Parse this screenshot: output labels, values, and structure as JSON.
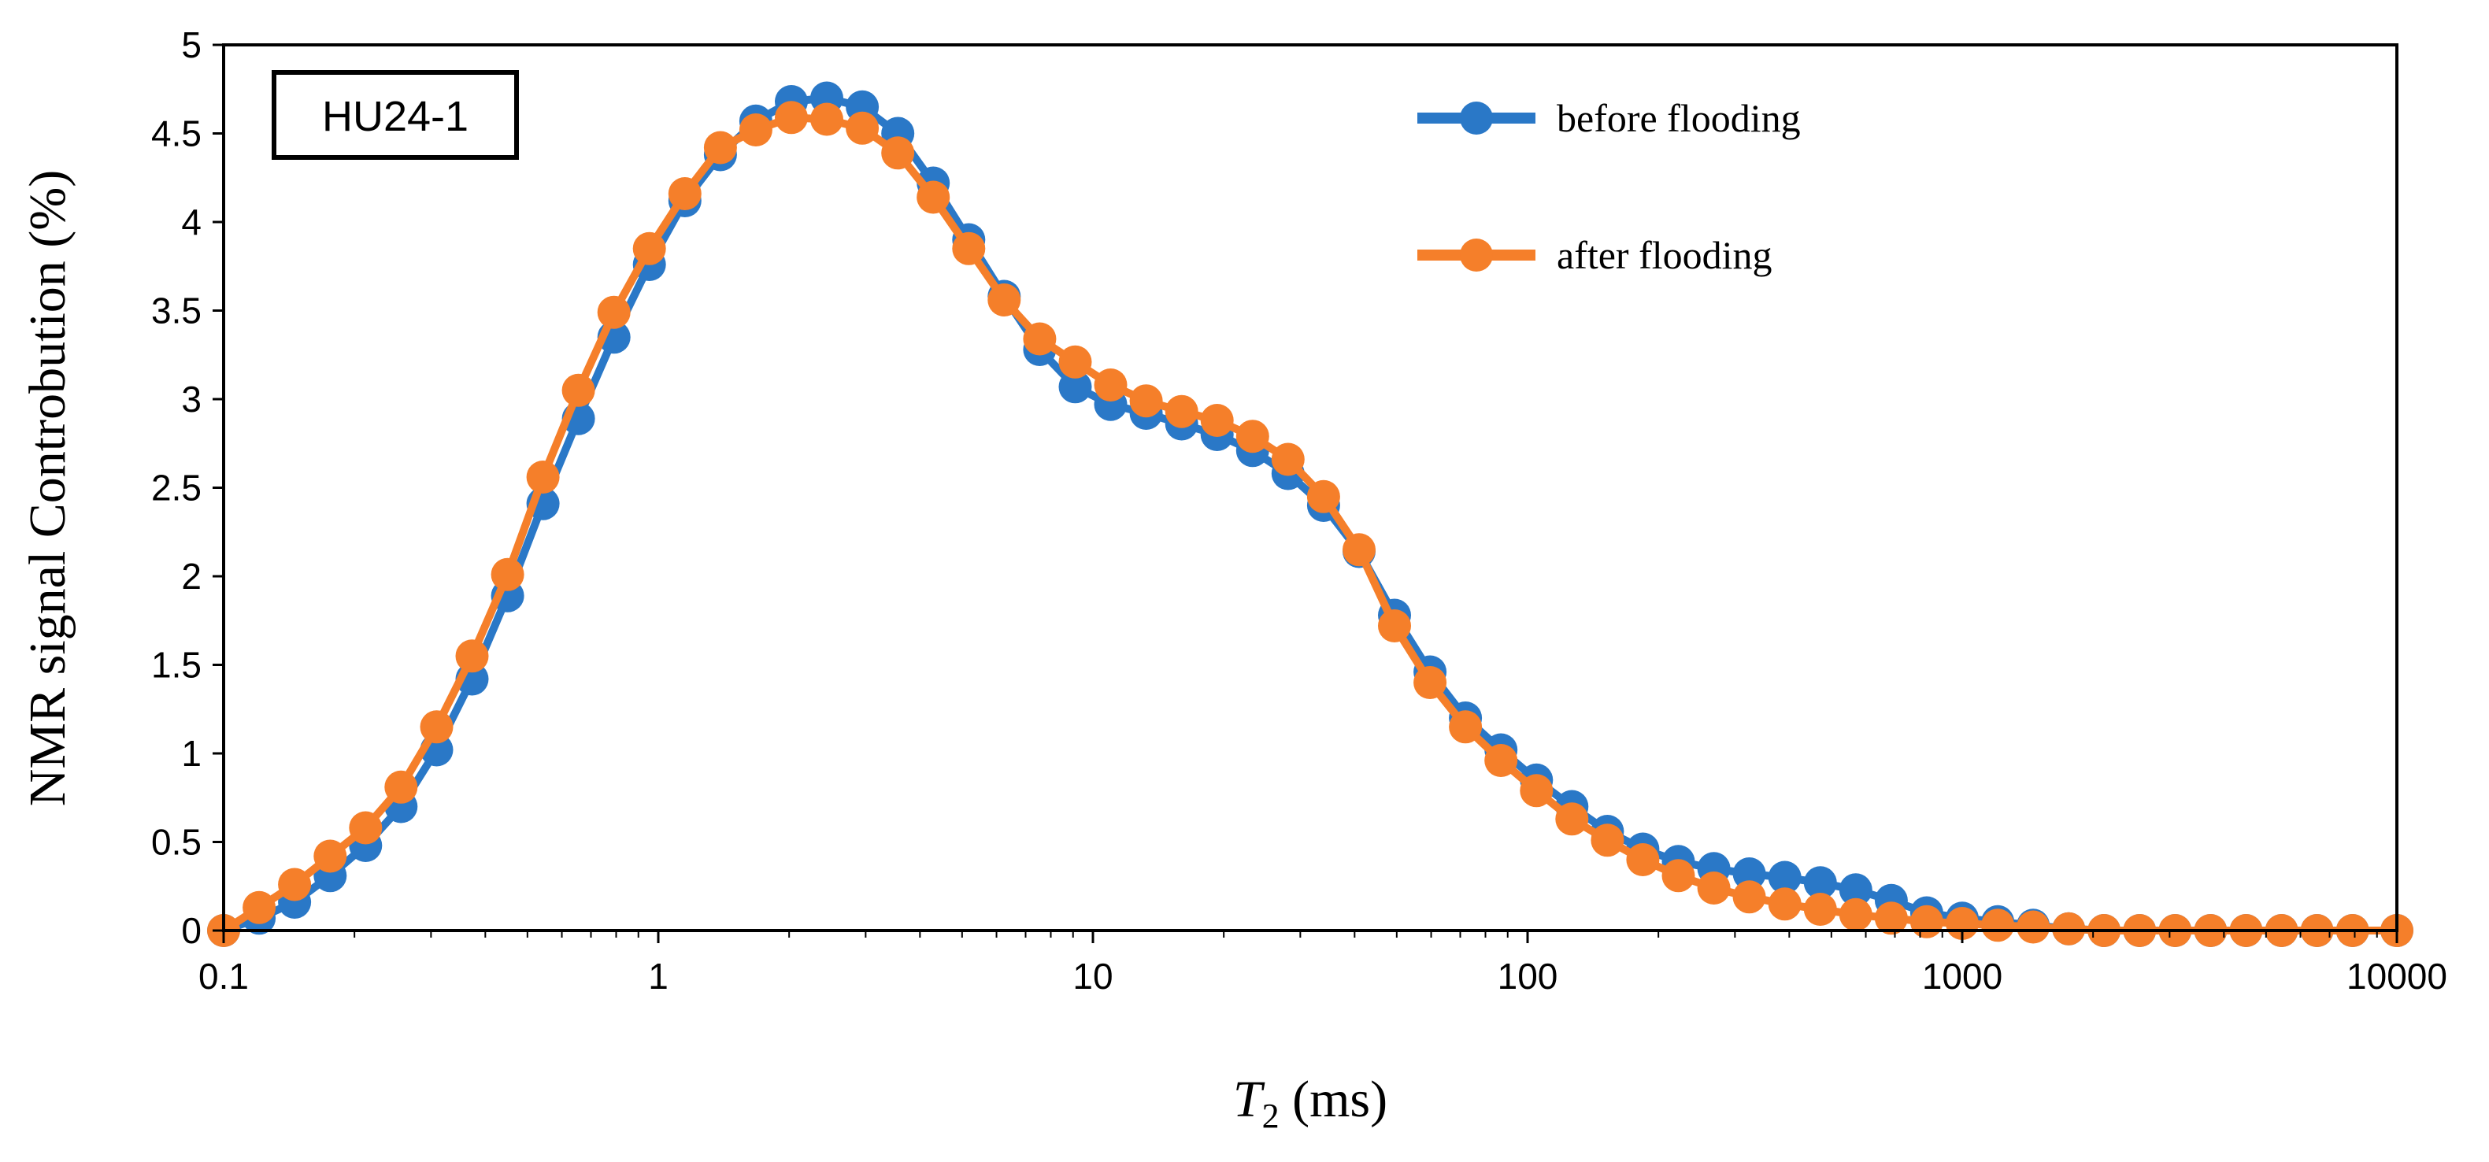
{
  "chart_data": {
    "type": "line",
    "sample_label": "HU24-1",
    "xlabel_italic": "T",
    "xlabel_sub": "2",
    "xlabel_rest": " (ms)",
    "ylabel": "NMR signal Controbution (%)",
    "x_scale": "log",
    "xlim": [
      0.1,
      10000
    ],
    "ylim": [
      0,
      5
    ],
    "x_ticks": [
      {
        "value": 0.1,
        "label": "0.1"
      },
      {
        "value": 1,
        "label": "1"
      },
      {
        "value": 10,
        "label": "10"
      },
      {
        "value": 100,
        "label": "100"
      },
      {
        "value": 1000,
        "label": "1000"
      },
      {
        "value": 10000,
        "label": "10000"
      }
    ],
    "y_ticks": [
      {
        "value": 0,
        "label": "0"
      },
      {
        "value": 0.5,
        "label": "0.5"
      },
      {
        "value": 1,
        "label": "1"
      },
      {
        "value": 1.5,
        "label": "1.5"
      },
      {
        "value": 2,
        "label": "2"
      },
      {
        "value": 2.5,
        "label": "2.5"
      },
      {
        "value": 3,
        "label": "3"
      },
      {
        "value": 3.5,
        "label": "3.5"
      },
      {
        "value": 4,
        "label": "4"
      },
      {
        "value": 4.5,
        "label": "4.5"
      },
      {
        "value": 5,
        "label": "5"
      }
    ],
    "grid": false,
    "legend_position": "top-right",
    "x": [
      0.1,
      0.1207,
      0.1456,
      0.1758,
      0.2121,
      0.256,
      0.309,
      0.3728,
      0.45,
      0.543,
      0.6551,
      0.7906,
      0.954,
      1.1514,
      1.3895,
      1.6768,
      2.0236,
      2.4421,
      2.9471,
      3.5565,
      4.2919,
      5.1795,
      6.2506,
      7.5431,
      9.103,
      10.9854,
      13.257,
      15.9985,
      19.307,
      23.2995,
      28.1177,
      33.9322,
      40.9492,
      49.4171,
      59.6362,
      71.9686,
      86.851,
      104.811,
      126.486,
      152.642,
      184.207,
      222.3,
      268.27,
      323.746,
      390.694,
      471.487,
      568.987,
      686.649,
      828.643,
      1000,
      1206.79,
      1456.35,
      1757.51,
      2120.95,
      2559.55,
      3088.84,
      3727.59,
      4498.43,
      5428.68,
      6551.29,
      7906.04,
      10000
    ],
    "series": [
      {
        "name": "before flooding",
        "color": "#2a78c7",
        "values": [
          0.0,
          0.07,
          0.16,
          0.31,
          0.48,
          0.7,
          1.02,
          1.42,
          1.89,
          2.41,
          2.89,
          3.35,
          3.76,
          4.12,
          4.38,
          4.57,
          4.68,
          4.7,
          4.65,
          4.5,
          4.22,
          3.9,
          3.58,
          3.28,
          3.07,
          2.97,
          2.92,
          2.86,
          2.8,
          2.71,
          2.58,
          2.4,
          2.14,
          1.78,
          1.46,
          1.2,
          1.02,
          0.85,
          0.7,
          0.56,
          0.46,
          0.39,
          0.35,
          0.32,
          0.3,
          0.27,
          0.23,
          0.17,
          0.1,
          0.07,
          0.05,
          0.03,
          0.01,
          0.0,
          0.0,
          0.0,
          0.0,
          0.0,
          0.0,
          0.0,
          0.0,
          0.0
        ]
      },
      {
        "name": "after flooding",
        "color": "#f57f2a",
        "values": [
          0.0,
          0.13,
          0.26,
          0.42,
          0.58,
          0.81,
          1.15,
          1.55,
          2.01,
          2.56,
          3.05,
          3.49,
          3.85,
          4.16,
          4.42,
          4.52,
          4.59,
          4.58,
          4.53,
          4.39,
          4.14,
          3.85,
          3.56,
          3.34,
          3.21,
          3.08,
          2.99,
          2.93,
          2.88,
          2.79,
          2.66,
          2.45,
          2.15,
          1.72,
          1.4,
          1.15,
          0.96,
          0.79,
          0.63,
          0.51,
          0.4,
          0.31,
          0.24,
          0.19,
          0.15,
          0.12,
          0.09,
          0.07,
          0.05,
          0.04,
          0.03,
          0.02,
          0.01,
          0.0,
          0.0,
          0.0,
          0.0,
          0.0,
          0.0,
          0.0,
          0.0,
          0.0
        ]
      }
    ]
  }
}
